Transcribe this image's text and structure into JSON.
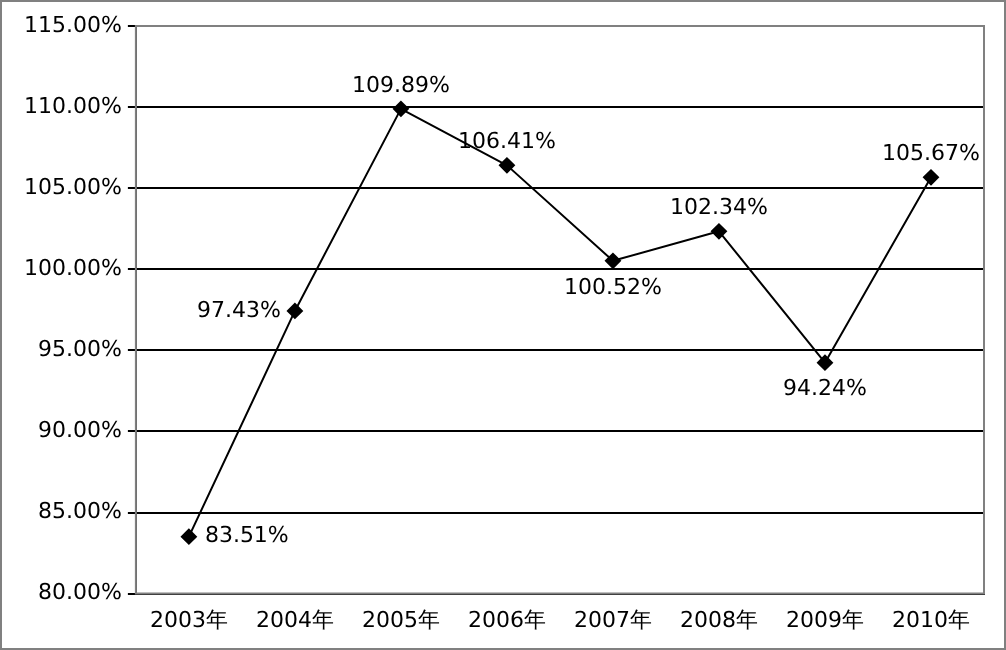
{
  "chart_data": {
    "type": "line",
    "categories": [
      "2003年",
      "2004年",
      "2005年",
      "2006年",
      "2007年",
      "2008年",
      "2009年",
      "2010年"
    ],
    "series": [
      {
        "color": "#000000",
        "values": [
          83.51,
          97.43,
          109.89,
          106.41,
          100.52,
          102.34,
          94.24,
          105.67
        ],
        "value_labels": [
          "83.51%",
          "97.43%",
          "109.89%",
          "106.41%",
          "100.52%",
          "102.34%",
          "94.24%",
          "105.67%"
        ]
      }
    ],
    "ylim": [
      80,
      115
    ],
    "yticks": [
      {
        "value": 80,
        "label": "80.00%"
      },
      {
        "value": 85,
        "label": "85.00%"
      },
      {
        "value": 90,
        "label": "90.00%"
      },
      {
        "value": 95,
        "label": "95.00%"
      },
      {
        "value": 100,
        "label": "100.00%"
      },
      {
        "value": 105,
        "label": "105.00%"
      },
      {
        "value": 110,
        "label": "110.00%"
      },
      {
        "value": 115,
        "label": "115.00%"
      }
    ],
    "grid": "y",
    "legend": false,
    "marker": "diamond",
    "line_style": "solid"
  }
}
